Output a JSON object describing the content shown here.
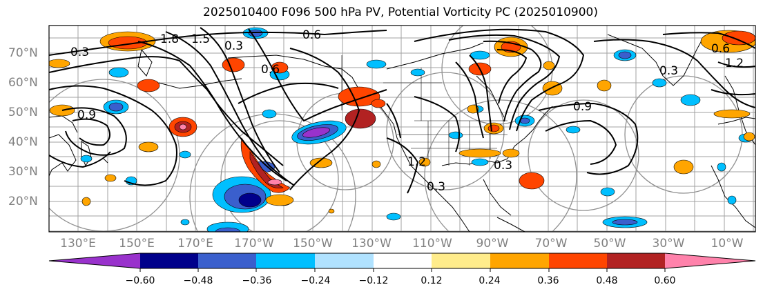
{
  "title": "2025010400 F096 500 hPa PV, Potential Vorticity PC (2025010900)",
  "latitude_labels": [
    "70°N",
    "60°N",
    "50°N",
    "40°N",
    "30°N",
    "20°N"
  ],
  "longitude_labels": [
    "130°E",
    "150°E",
    "170°E",
    "170°W",
    "150°W",
    "130°W",
    "110°W",
    "90°W",
    "70°W",
    "50°W",
    "30°W",
    "10°W"
  ],
  "contour_labels": [
    "0.3",
    "1.8",
    "0.6",
    "1.5",
    "0.9",
    "0.3",
    "0.6",
    "1.2",
    "0.3",
    "0.9",
    "0.3",
    "0.6",
    "0.3",
    "1.2"
  ],
  "colorbar": {
    "tick_labels": [
      "−0.60",
      "−0.48",
      "−0.36",
      "−0.24",
      "−0.12",
      "0.12",
      "0.24",
      "0.36",
      "0.48",
      "0.60"
    ],
    "colors": [
      "#9932cc",
      "#00008b",
      "#3a5fcd",
      "#00bfff",
      "#b0e2ff",
      "#ffffff",
      "#ffec8b",
      "#ffa500",
      "#ff4500",
      "#b22222",
      "#ff82ab"
    ]
  },
  "fill_colors": {
    "neg_strong": "#9932cc",
    "neg3": "#00008b",
    "neg2": "#3a5fcd",
    "neg1": "#00bfff",
    "neg0": "#b0e2ff",
    "pos0": "#ffec8b",
    "pos1": "#ffa500",
    "pos2": "#ff4500",
    "pos3": "#b22222",
    "pos_strong": "#ff82ab"
  }
}
